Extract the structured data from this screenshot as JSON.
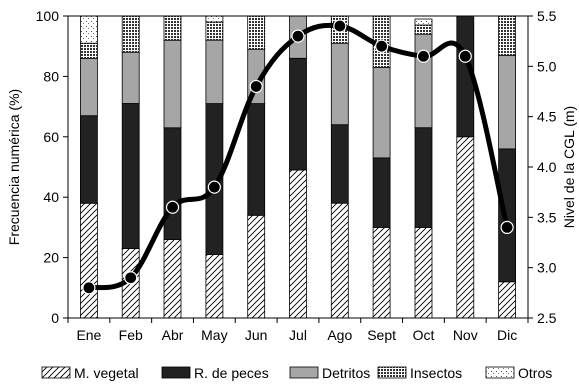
{
  "chart_data": {
    "type": "bar",
    "stacked": true,
    "categories": [
      "Ene",
      "Feb",
      "Abr",
      "May",
      "Jun",
      "Jul",
      "Ago",
      "Sept",
      "Oct",
      "Nov",
      "Dic"
    ],
    "ylabel": "Frecuencia numérica (%)",
    "y2label": "Nivel de la CGL (m)",
    "ylim": [
      0,
      100
    ],
    "y2lim": [
      2.5,
      5.5
    ],
    "yticks": [
      "0",
      "20",
      "40",
      "60",
      "80",
      "100"
    ],
    "y2ticks": [
      "2.5",
      "3.0",
      "3.5",
      "4.0",
      "4.5",
      "5.0",
      "5.5"
    ],
    "series": [
      {
        "name": "M. vegetal",
        "values": [
          38,
          23,
          26,
          21,
          34,
          49,
          38,
          30,
          30,
          60,
          12
        ],
        "fill": "hatch"
      },
      {
        "name": "R. de peces",
        "values": [
          29,
          48,
          37,
          50,
          37,
          37,
          26,
          23,
          33,
          40,
          44
        ],
        "fill": "#222222"
      },
      {
        "name": "Detritos",
        "values": [
          19,
          17,
          29,
          21,
          18,
          14,
          27,
          30,
          31,
          0,
          31
        ],
        "fill": "#a6a6a6"
      },
      {
        "name": "Insectos",
        "values": [
          5,
          12,
          8,
          6,
          11,
          0,
          9,
          17,
          3,
          0,
          13
        ],
        "fill": "dotted-grid"
      },
      {
        "name": "Otros",
        "values": [
          9,
          0,
          0,
          2,
          0,
          0,
          0,
          0,
          2,
          0,
          0
        ],
        "fill": "speckle"
      }
    ],
    "line": {
      "axis": "right",
      "values": [
        2.8,
        2.9,
        3.6,
        3.8,
        4.8,
        5.3,
        5.4,
        5.2,
        5.1,
        5.1,
        3.4
      ]
    },
    "legend_position": "bottom",
    "grid": false
  }
}
